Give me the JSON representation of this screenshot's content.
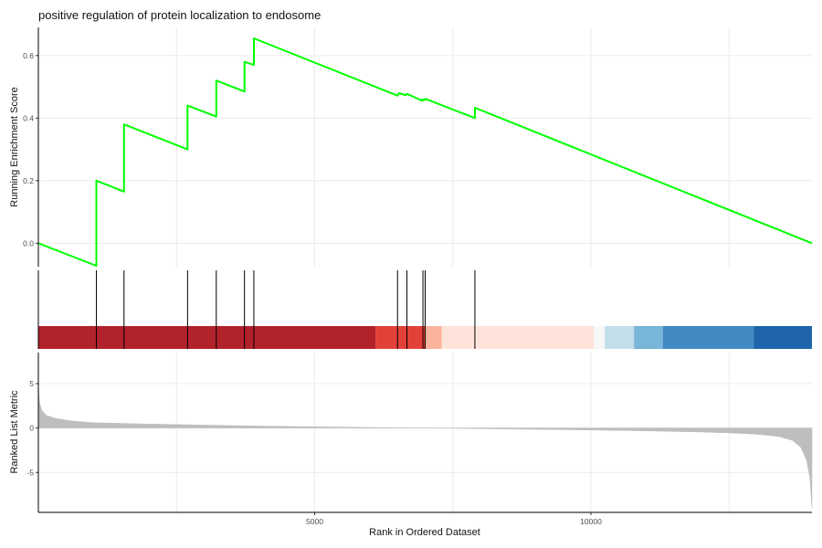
{
  "chart_data": {
    "type": "line",
    "title": "positive regulation of protein localization to endosome",
    "xlabel": "Rank in Ordered Dataset",
    "xlim": [
      0,
      14000
    ],
    "x_ticks": [
      {
        "value": 5000,
        "label": "5000"
      },
      {
        "value": 10000,
        "label": "10000"
      }
    ],
    "x_gridlines": [
      2500,
      5000,
      7500,
      10000,
      12500
    ],
    "grid": true,
    "enrichment": {
      "ylabel": "Running Enrichment Score",
      "ylim": [
        -0.075,
        0.69
      ],
      "y_ticks": [
        {
          "value": 0.0,
          "label": "0.0"
        },
        {
          "value": 0.2,
          "label": "0.2"
        },
        {
          "value": 0.4,
          "label": "0.4"
        },
        {
          "value": 0.6,
          "label": "0.6"
        }
      ],
      "line_color": "#00ff00",
      "points": [
        [
          0,
          0.0
        ],
        [
          1050,
          -0.072
        ],
        [
          1050,
          0.2
        ],
        [
          1550,
          0.165
        ],
        [
          1550,
          0.38
        ],
        [
          2700,
          0.3
        ],
        [
          2700,
          0.44
        ],
        [
          3220,
          0.405
        ],
        [
          3220,
          0.52
        ],
        [
          3730,
          0.485
        ],
        [
          3730,
          0.58
        ],
        [
          3900,
          0.57
        ],
        [
          3900,
          0.655
        ],
        [
          6500,
          0.472
        ],
        [
          6530,
          0.48
        ],
        [
          6650,
          0.473
        ],
        [
          6670,
          0.478
        ],
        [
          6950,
          0.455
        ],
        [
          6950,
          0.46
        ],
        [
          7000,
          0.458
        ],
        [
          7000,
          0.462
        ],
        [
          7900,
          0.4
        ],
        [
          7900,
          0.433
        ],
        [
          14000,
          0.0
        ]
      ]
    },
    "hits": [
      1050,
      1550,
      2700,
      3220,
      3730,
      3900,
      6500,
      6670,
      6960,
      7000,
      7900
    ],
    "rank_bands": [
      {
        "from": 0,
        "to": 6100,
        "color": "#b2222b"
      },
      {
        "from": 6100,
        "to": 7000,
        "color": "#e2413a"
      },
      {
        "from": 7000,
        "to": 7300,
        "color": "#fbb39c"
      },
      {
        "from": 7300,
        "to": 10050,
        "color": "#fde3d9"
      },
      {
        "from": 10050,
        "to": 10250,
        "color": "#f7f7f7"
      },
      {
        "from": 10250,
        "to": 10780,
        "color": "#c3ddeb"
      },
      {
        "from": 10780,
        "to": 11300,
        "color": "#79b4d9"
      },
      {
        "from": 11300,
        "to": 12950,
        "color": "#4189c3"
      },
      {
        "from": 12950,
        "to": 14000,
        "color": "#2065ab"
      }
    ],
    "ranked_metric": {
      "ylabel": "Ranked List Metric",
      "ylim": [
        -9.5,
        8.5
      ],
      "y_ticks": [
        {
          "value": 5,
          "label": "5"
        },
        {
          "value": 0,
          "label": "0"
        },
        {
          "value": -5,
          "label": "-5"
        }
      ],
      "fill_color": "#bebebe",
      "profile": [
        [
          0,
          5.0
        ],
        [
          20,
          3.0
        ],
        [
          60,
          2.0
        ],
        [
          150,
          1.4
        ],
        [
          300,
          1.1
        ],
        [
          600,
          0.8
        ],
        [
          1000,
          0.6
        ],
        [
          2000,
          0.45
        ],
        [
          3000,
          0.33
        ],
        [
          4000,
          0.22
        ],
        [
          5000,
          0.14
        ],
        [
          6000,
          0.07
        ],
        [
          7000,
          0.0
        ],
        [
          8000,
          -0.08
        ],
        [
          9000,
          -0.15
        ],
        [
          10000,
          -0.22
        ],
        [
          11000,
          -0.32
        ],
        [
          12000,
          -0.45
        ],
        [
          12500,
          -0.55
        ],
        [
          13000,
          -0.7
        ],
        [
          13400,
          -0.95
        ],
        [
          13650,
          -1.4
        ],
        [
          13800,
          -2.2
        ],
        [
          13900,
          -3.6
        ],
        [
          13960,
          -5.5
        ],
        [
          14000,
          -9.0
        ]
      ]
    }
  }
}
